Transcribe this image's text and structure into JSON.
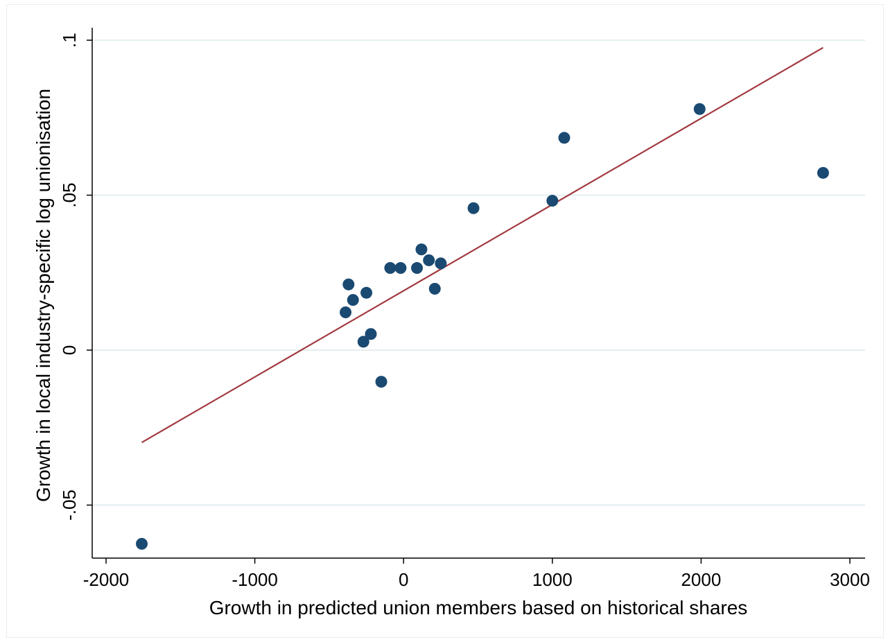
{
  "chart_data": {
    "type": "scatter",
    "title": "",
    "xlabel": "Growth in predicted union members based on historical shares",
    "ylabel": "Growth in local industry-specific log unionisation",
    "xlim": [
      -2100,
      3100
    ],
    "ylim": [
      -0.067,
      0.105
    ],
    "x_ticks": [
      -2000,
      -1000,
      0,
      1000,
      2000,
      3000
    ],
    "x_tick_labels": [
      "-2000",
      "-1000",
      "0",
      "1000",
      "2000",
      "3000"
    ],
    "y_ticks": [
      -0.05,
      0,
      0.05,
      0.1
    ],
    "y_tick_labels": [
      "-.05",
      "0",
      ".05",
      ".1"
    ],
    "grid": "horizontal",
    "colors": {
      "points": "#1a4a72",
      "fit_line": "#a23a40",
      "grid": "#e4eef0"
    },
    "series": [
      {
        "kind": "points",
        "x": [
          -1760,
          -390,
          -370,
          -340,
          -250,
          -270,
          -220,
          -150,
          -90,
          -20,
          90,
          120,
          170,
          210,
          250,
          470,
          1000,
          1080,
          1990,
          2820
        ],
        "y": [
          -0.0625,
          0.0122,
          0.0212,
          0.0162,
          0.0185,
          0.0027,
          0.0052,
          -0.0102,
          0.0265,
          0.0265,
          0.0265,
          0.0325,
          0.029,
          0.0198,
          0.028,
          0.0458,
          0.0482,
          0.0685,
          0.0778,
          0.0572
        ]
      },
      {
        "kind": "fitted_line",
        "x": [
          -1760,
          2820
        ],
        "y": [
          -0.0298,
          0.0976
        ]
      }
    ]
  }
}
